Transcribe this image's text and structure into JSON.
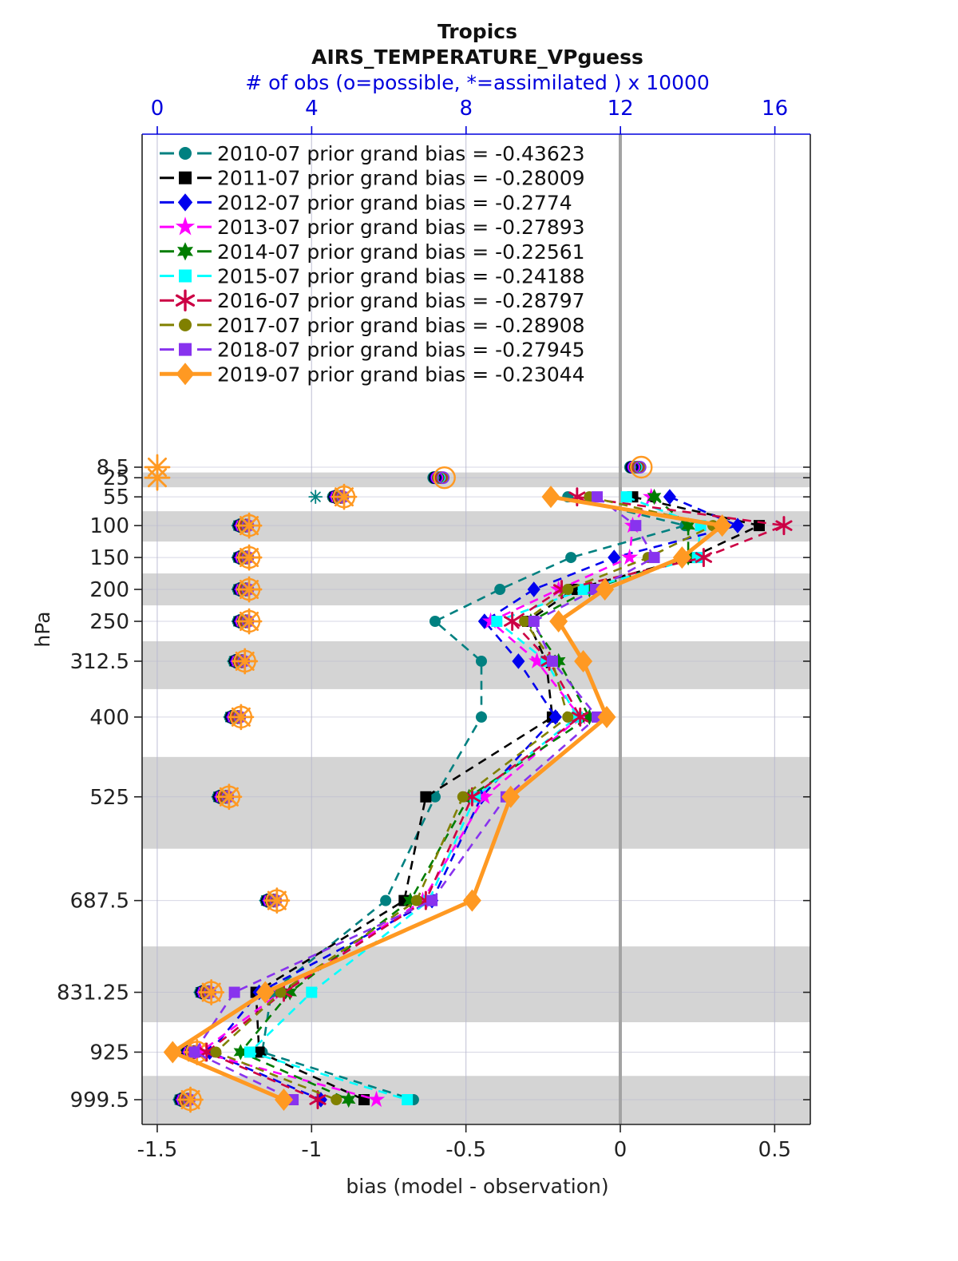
{
  "window": {
    "title": "Tropics"
  },
  "header": {
    "title": "Tropics",
    "subtitle": "AIRS_TEMPERATURE_VPguess",
    "obs_axis_label": "# of obs (o=possible, *=assimilated ) x 10000"
  },
  "axes": {
    "x_bottom": {
      "label": "bias (model - observation)",
      "ticks": [
        "-1.5",
        "-1",
        "-0.5",
        "0",
        "0.5"
      ],
      "tick_values": [
        -1.5,
        -1,
        -0.5,
        0,
        0.5
      ]
    },
    "x_top": {
      "label": "# of obs (o=possible, *=assimilated ) x 10000",
      "ticks": [
        "0",
        "4",
        "8",
        "12",
        "16"
      ],
      "tick_values": [
        0,
        4,
        8,
        12,
        16
      ],
      "color": "#0000dd"
    },
    "y_left": {
      "label": "hPa",
      "ticks": [
        "8.5",
        "25",
        "55",
        "100",
        "150",
        "200",
        "250",
        "312.5",
        "400",
        "525",
        "687.5",
        "831.25",
        "925",
        "999.5"
      ],
      "tick_values": [
        8.5,
        25,
        55,
        100,
        150,
        200,
        250,
        312.5,
        400,
        525,
        687.5,
        831.25,
        925,
        999.5
      ]
    }
  },
  "legend": [
    {
      "label": "2010-07 prior grand bias = -0.43623"
    },
    {
      "label": "2011-07 prior grand bias = -0.28009"
    },
    {
      "label": "2012-07 prior grand bias = -0.2774"
    },
    {
      "label": "2013-07 prior grand bias = -0.27893"
    },
    {
      "label": "2014-07 prior grand bias = -0.22561"
    },
    {
      "label": "2015-07 prior grand bias = -0.24188"
    },
    {
      "label": "2016-07 prior grand bias = -0.28797"
    },
    {
      "label": "2017-07 prior grand bias = -0.28908"
    },
    {
      "label": "2018-07 prior grand bias = -0.27945"
    },
    {
      "label": "2019-07 prior grand bias = -0.23044"
    }
  ],
  "chart_data": {
    "type": "line",
    "title": "Tropics",
    "subtitle": "AIRS_TEMPERATURE_VPguess",
    "xlabel": "bias (model - observation)",
    "x2label": "# of obs (o=possible, *=assimilated ) x 10000",
    "ylabel": "hPa",
    "xlim": [
      -1.55,
      0.615
    ],
    "x2lim": [
      -0.41,
      16.93
    ],
    "grid": true,
    "zero_bias_line": true,
    "legend_position": "top-left-inside",
    "pressure_ticks_hpa": [
      8.5,
      25,
      55,
      100,
      150,
      200,
      250,
      312.5,
      400,
      525,
      687.5,
      831.25,
      925,
      999.5
    ],
    "gray_band_levels": [
      25,
      100,
      200,
      312.5,
      525,
      831.25,
      999.5
    ],
    "data_levels_hpa": [
      55,
      100,
      150,
      200,
      250,
      312.5,
      400,
      525,
      687.5,
      831.25,
      925,
      999.5
    ],
    "series": [
      {
        "name": "2010-07",
        "grand_bias": -0.43623,
        "color": "#008080",
        "marker": "circle",
        "line": "dashed",
        "bias": [
          -0.17,
          0.21,
          -0.16,
          -0.39,
          -0.6,
          -0.45,
          -0.45,
          -0.6,
          -0.76,
          -1.13,
          -1.16,
          -0.67
        ]
      },
      {
        "name": "2011-07",
        "grand_bias": -0.28009,
        "color": "#000000",
        "marker": "square",
        "line": "dashed",
        "bias": [
          0.04,
          0.45,
          0.23,
          -0.15,
          -0.3,
          -0.24,
          -0.22,
          -0.63,
          -0.7,
          -1.18,
          -1.17,
          -0.83
        ]
      },
      {
        "name": "2012-07",
        "grand_bias": -0.2774,
        "color": "#0000ee",
        "marker": "diamond",
        "line": "dashed",
        "bias": [
          0.16,
          0.38,
          -0.02,
          -0.28,
          -0.44,
          -0.33,
          -0.21,
          -0.45,
          -0.61,
          -1.17,
          -1.33,
          -0.97
        ]
      },
      {
        "name": "2013-07",
        "grand_bias": -0.27893,
        "color": "#ff00ff",
        "marker": "pentagram",
        "line": "dashed",
        "bias": [
          0.1,
          0.04,
          0.03,
          -0.2,
          -0.42,
          -0.27,
          -0.13,
          -0.44,
          -0.64,
          -1.1,
          -1.36,
          -0.79
        ]
      },
      {
        "name": "2014-07",
        "grand_bias": -0.22561,
        "color": "#007d00",
        "marker": "hexagram",
        "line": "dashed",
        "bias": [
          0.11,
          0.22,
          0.22,
          -0.1,
          -0.29,
          -0.2,
          -0.1,
          -0.49,
          -0.68,
          -1.07,
          -1.23,
          -0.88
        ]
      },
      {
        "name": "2015-07",
        "grand_bias": -0.24188,
        "color": "#00ffff",
        "marker": "square",
        "line": "dashed",
        "bias": [
          0.02,
          0.26,
          0.25,
          -0.12,
          -0.4,
          -0.24,
          -0.14,
          -0.47,
          -0.62,
          -1.0,
          -1.2,
          -0.69
        ]
      },
      {
        "name": "2016-07",
        "grand_bias": -0.28797,
        "color": "#cc0044",
        "marker": "asterisk",
        "line": "dashed",
        "bias": [
          -0.14,
          0.53,
          0.27,
          -0.19,
          -0.35,
          -0.23,
          -0.13,
          -0.48,
          -0.63,
          -1.09,
          -1.34,
          -0.98
        ]
      },
      {
        "name": "2017-07",
        "grand_bias": -0.28908,
        "color": "#808000",
        "marker": "circle",
        "line": "dashed",
        "bias": [
          -0.1,
          0.3,
          0.09,
          -0.17,
          -0.31,
          -0.22,
          -0.17,
          -0.51,
          -0.66,
          -1.1,
          -1.31,
          -0.92
        ]
      },
      {
        "name": "2018-07",
        "grand_bias": -0.27945,
        "color": "#8833ee",
        "marker": "square",
        "line": "dashed",
        "bias": [
          -0.075,
          0.05,
          0.11,
          -0.08,
          -0.28,
          -0.22,
          -0.075,
          -0.37,
          -0.61,
          -1.25,
          -1.38,
          -1.06
        ]
      },
      {
        "name": "2019-07",
        "grand_bias": -0.23044,
        "color": "#ff9922",
        "marker": "diamond",
        "line": "solid",
        "highlight": true,
        "bias": [
          -0.225,
          0.33,
          0.2,
          -0.05,
          -0.2,
          -0.12,
          -0.044,
          -0.355,
          -0.48,
          -1.15,
          -1.45,
          -1.09
        ]
      }
    ],
    "obs_x10000": {
      "levels": [
        8.5,
        25,
        55,
        100,
        150,
        200,
        250,
        312.5,
        400,
        525,
        687.5,
        831.25,
        925,
        999.5
      ],
      "possible": [
        12.4,
        7.3,
        4.7,
        2.24,
        2.24,
        2.24,
        2.24,
        2.13,
        2.03,
        1.72,
        2.96,
        1.26,
        0.89,
        0.72
      ],
      "assimilated_default": "same_as_possible",
      "assimilated_overrides": [
        {
          "level": 8.5,
          "series": "all",
          "value": 0
        },
        {
          "level": 25,
          "series": "all",
          "value": 0
        },
        {
          "level": 55,
          "series": "2010-07",
          "value": 4.1
        }
      ]
    }
  },
  "style": {
    "band_color": "#d4d4d4",
    "grid_color": "#b8b8cf",
    "zero_line_color": "#a3a3a3",
    "axis_color": "#222222",
    "top_axis_color": "#0000dd"
  }
}
